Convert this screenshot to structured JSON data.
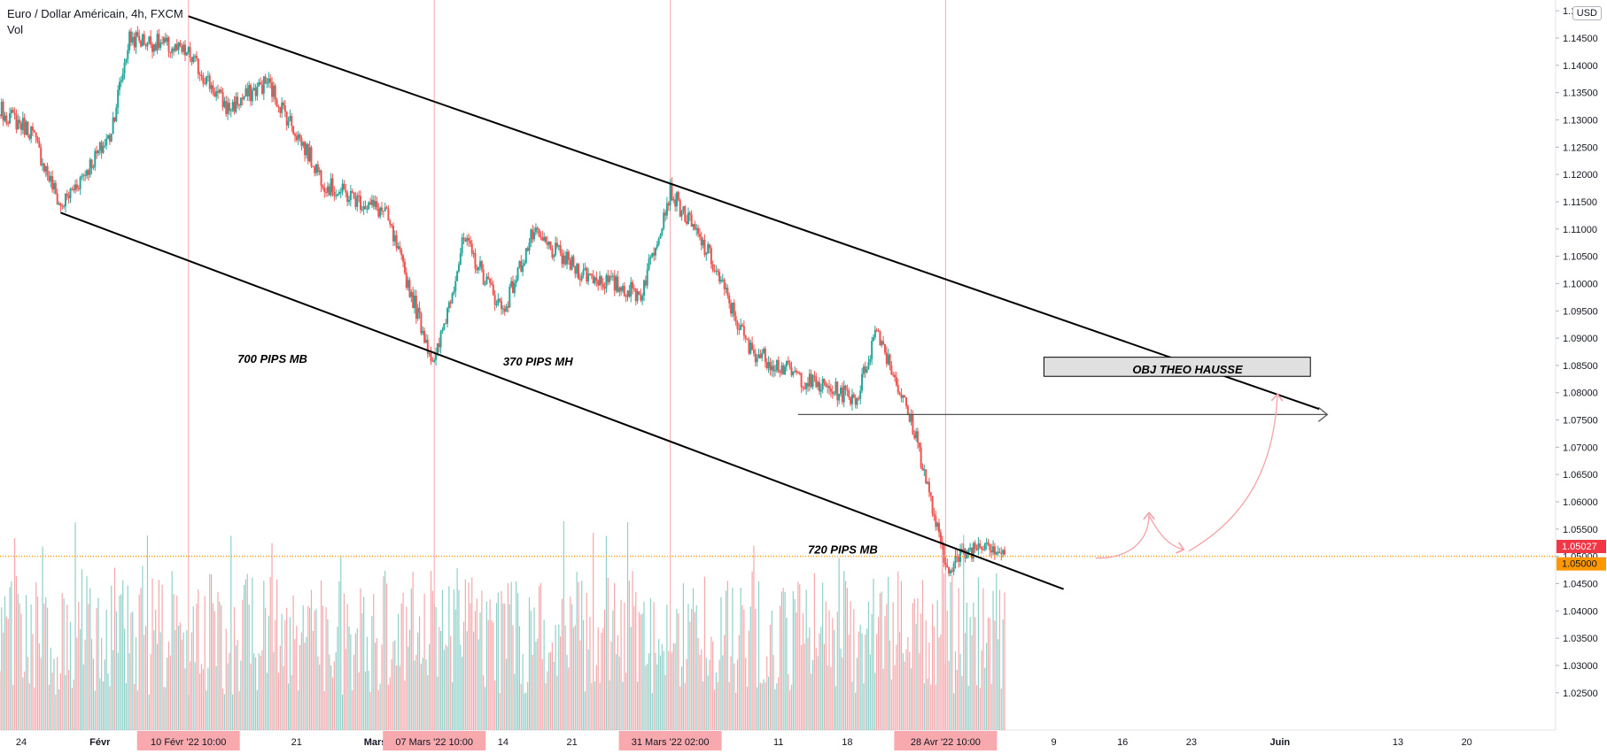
{
  "header": {
    "title": "Euro / Dollar Américain, 4h, FXCM",
    "volume_label": "Vol",
    "currency": "USD"
  },
  "price_axis": {
    "ticks": [
      "1.15000",
      "1.14500",
      "1.14000",
      "1.13500",
      "1.13000",
      "1.12500",
      "1.12000",
      "1.11500",
      "1.11000",
      "1.10500",
      "1.10000",
      "1.09500",
      "1.09000",
      "1.08500",
      "1.08000",
      "1.07500",
      "1.07000",
      "1.06500",
      "1.06000",
      "1.05500",
      "1.05000",
      "1.04500",
      "1.04000",
      "1.03500",
      "1.03000",
      "1.02500"
    ],
    "last_price_label": "1.05027",
    "level_label": "1.05000",
    "colors": {
      "last_price": "#f23645",
      "level": "#ff9800"
    }
  },
  "time_axis": {
    "ticks": [
      "24",
      "Févr",
      "21",
      "Mars",
      "14",
      "21",
      "11",
      "18",
      "9",
      "16",
      "23",
      "Juin",
      "13",
      "20"
    ],
    "highlights": [
      "10 Févr '22   10:00",
      "07 Mars '22   10:00",
      "31 Mars '22   02:00",
      "28 Avr '22   10:00"
    ]
  },
  "annotations": {
    "mb_700": "700 PIPS MB",
    "mh_370": "370 PIPS MH",
    "mb_720": "720 PIPS MB",
    "objective": "OBJ THEO HAUSSE"
  },
  "colors": {
    "up": "#26a69a",
    "down": "#ef5350",
    "line": "#000000"
  },
  "chart_data": {
    "type": "candlestick",
    "symbol": "EUR/USD",
    "timeframe": "4h",
    "y_range": [
      1.02,
      1.15
    ],
    "close_path": [
      [
        "2022-01-20",
        1.134
      ],
      [
        "2022-01-25",
        1.128
      ],
      [
        "2022-01-28",
        1.114
      ],
      [
        "2022-02-02",
        1.127
      ],
      [
        "2022-02-04",
        1.145
      ],
      [
        "2022-02-07",
        1.144
      ],
      [
        "2022-02-10",
        1.142
      ],
      [
        "2022-02-14",
        1.132
      ],
      [
        "2022-02-18",
        1.137
      ],
      [
        "2022-02-24",
        1.118
      ],
      [
        "2022-03-02",
        1.113
      ],
      [
        "2022-03-07",
        1.085
      ],
      [
        "2022-03-10",
        1.108
      ],
      [
        "2022-03-14",
        1.095
      ],
      [
        "2022-03-17",
        1.109
      ],
      [
        "2022-03-22",
        1.102
      ],
      [
        "2022-03-28",
        1.098
      ],
      [
        "2022-03-31",
        1.117
      ],
      [
        "2022-04-04",
        1.105
      ],
      [
        "2022-04-08",
        1.088
      ],
      [
        "2022-04-14",
        1.082
      ],
      [
        "2022-04-19",
        1.079
      ],
      [
        "2022-04-21",
        1.092
      ],
      [
        "2022-04-25",
        1.072
      ],
      [
        "2022-04-28",
        1.048
      ],
      [
        "2022-05-02",
        1.053
      ],
      [
        "2022-05-04",
        1.0503
      ]
    ],
    "last_price": 1.05027,
    "horizontal_level": 1.05,
    "trendlines": [
      {
        "from": [
          "2022-02-10",
          1.149
        ],
        "to": [
          "2022-06-05",
          1.077
        ]
      },
      {
        "from": [
          "2022-01-28",
          1.113
        ],
        "to": [
          "2022-05-10",
          1.044
        ]
      }
    ],
    "target_zone": {
      "label": "OBJ THEO HAUSSE",
      "y_range": [
        1.083,
        1.0865
      ]
    },
    "arrow_level": 1.076
  }
}
